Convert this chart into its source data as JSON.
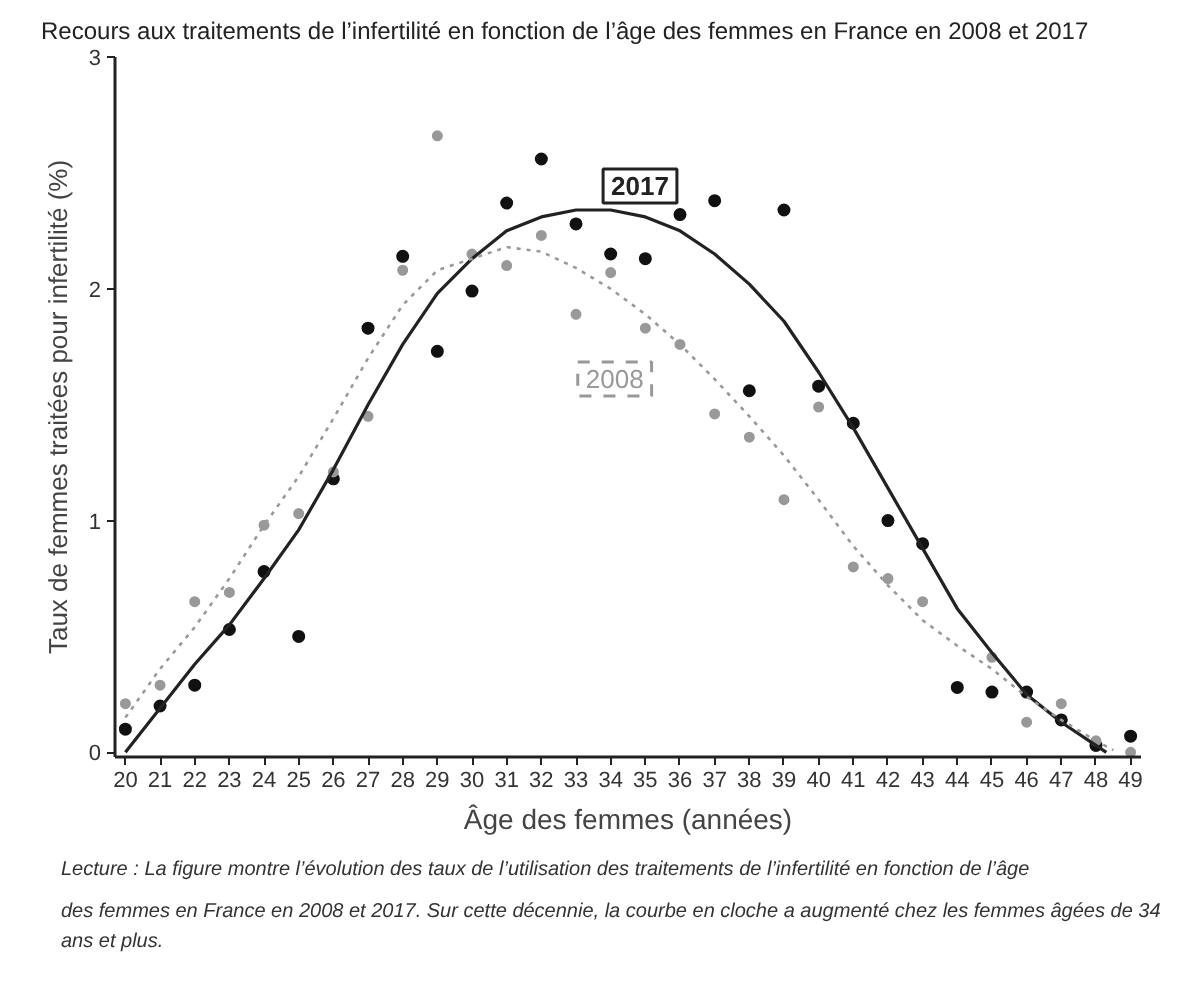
{
  "chart_data": {
    "type": "scatter",
    "title": "Recours aux traitements de l’infertilité en fonction de l’âge des femmes en France en 2008 et 2017",
    "xlabel": "Âge des femmes (années)",
    "ylabel": "Taux de femmes traitées pour infertilité (%)",
    "annotations": [
      "Lecture : La figure montre l’évolution des taux de l’utilisation des traitements de l’infertilité en fonction de l’âge des femmes en France en 2008 et 2017. Sur cette décennie, la courbe en cloche a augmenté chez les femmes âgées de 34 ans et plus."
    ],
    "x": [
      20,
      21,
      22,
      23,
      24,
      25,
      26,
      27,
      28,
      29,
      30,
      31,
      32,
      33,
      34,
      35,
      36,
      37,
      38,
      39,
      40,
      41,
      42,
      43,
      44,
      45,
      46,
      47,
      48,
      49
    ],
    "xlim": [
      19.7,
      49.3
    ],
    "xticks": [
      20,
      21,
      22,
      23,
      24,
      25,
      26,
      27,
      28,
      29,
      30,
      31,
      32,
      33,
      34,
      35,
      36,
      37,
      38,
      39,
      40,
      41,
      42,
      43,
      44,
      45,
      46,
      47,
      48,
      49
    ],
    "ylim": [
      -0.02,
      3
    ],
    "yticks": [
      0,
      1,
      2,
      3
    ],
    "marker": "circle",
    "series": [
      {
        "color": "#111111",
        "values": [
          0.1,
          0.2,
          0.29,
          0.53,
          0.78,
          0.5,
          1.18,
          1.83,
          2.14,
          1.73,
          1.99,
          2.37,
          2.56,
          2.28,
          2.15,
          2.13,
          2.32,
          2.38,
          1.56,
          2.34,
          1.58,
          1.42,
          1.0,
          0.9,
          0.28,
          0.26,
          0.26,
          0.14,
          0.03,
          0.07
        ]
      },
      {
        "color": "#999999",
        "values": [
          0.21,
          0.29,
          0.65,
          0.69,
          0.98,
          1.03,
          1.21,
          1.45,
          2.08,
          2.66,
          2.15,
          2.1,
          2.23,
          1.89,
          2.07,
          1.83,
          1.76,
          1.46,
          1.36,
          1.09,
          1.49,
          0.8,
          0.75,
          0.65,
          null,
          0.41,
          0.13,
          0.21,
          0.05,
          0.0
        ]
      },
      {
        "type": "line",
        "name": "2017",
        "color": "#222222",
        "line_style": "solid",
        "marker": "none",
        "x": [
          20,
          21,
          22,
          23,
          24,
          25,
          26,
          27,
          28,
          29,
          30,
          31,
          32,
          33,
          34,
          35,
          36,
          37,
          38,
          39,
          40,
          41,
          42,
          43,
          44,
          45,
          46,
          47,
          48,
          48.3
        ],
        "values": [
          0.0,
          0.19,
          0.38,
          0.55,
          0.75,
          0.96,
          1.22,
          1.5,
          1.76,
          1.98,
          2.13,
          2.25,
          2.31,
          2.34,
          2.34,
          2.31,
          2.25,
          2.15,
          2.02,
          1.86,
          1.64,
          1.4,
          1.14,
          0.88,
          0.62,
          0.43,
          0.25,
          0.13,
          0.03,
          0.0
        ]
      },
      {
        "type": "line",
        "name": "2008",
        "color": "#999999",
        "line_style": "dotted",
        "marker": "none",
        "x": [
          20,
          21,
          22,
          23,
          24,
          25,
          26,
          27,
          28,
          29,
          30,
          31,
          32,
          33,
          34,
          35,
          36,
          37,
          38,
          39,
          40,
          41,
          42,
          43,
          44,
          45,
          46,
          47,
          48,
          48.5
        ],
        "values": [
          0.15,
          0.36,
          0.54,
          0.75,
          0.98,
          1.19,
          1.44,
          1.7,
          1.93,
          2.08,
          2.13,
          2.18,
          2.16,
          2.09,
          2.0,
          1.89,
          1.76,
          1.61,
          1.45,
          1.28,
          1.09,
          0.89,
          0.72,
          0.57,
          0.46,
          0.36,
          0.24,
          0.14,
          0.05,
          0.01
        ]
      }
    ]
  }
}
